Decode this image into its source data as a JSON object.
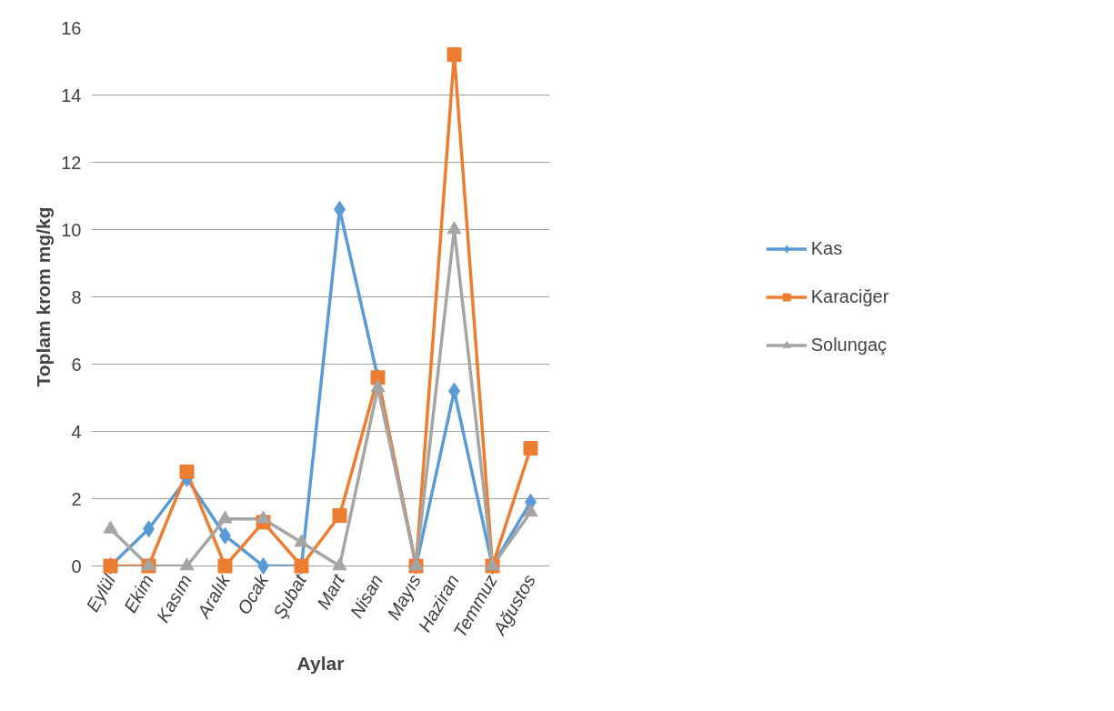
{
  "chart_data": {
    "type": "line",
    "xlabel": "Aylar",
    "ylabel": "Toplam krom mg/kg",
    "categories": [
      "Eylül",
      "Ekim",
      "Kasım",
      "Aralık",
      "Ocak",
      "Şubat",
      "Mart",
      "Nisan",
      "Mayıs",
      "Haziran",
      "Temmuz",
      "Ağustos"
    ],
    "series": [
      {
        "name": "Kas",
        "color": "#5b9bd5",
        "marker": "diamond",
        "values": [
          0,
          1.1,
          2.6,
          0.9,
          0,
          0,
          10.6,
          5.6,
          0,
          5.2,
          0,
          1.9
        ]
      },
      {
        "name": "Karaciğer",
        "color": "#ed7d31",
        "marker": "square",
        "values": [
          0,
          0,
          2.8,
          0,
          1.3,
          0,
          1.5,
          5.6,
          0,
          15.2,
          0,
          3.5
        ]
      },
      {
        "name": "Solungaç",
        "color": "#a5a5a5",
        "marker": "triangle",
        "values": [
          1.1,
          0,
          0,
          1.4,
          1.4,
          0.7,
          0,
          5.3,
          0,
          10.0,
          0,
          1.6
        ]
      }
    ],
    "ylim": [
      0,
      16
    ],
    "yticks": [
      0,
      2,
      4,
      6,
      8,
      10,
      12,
      14,
      16
    ],
    "grid": "y",
    "legend": "right"
  }
}
